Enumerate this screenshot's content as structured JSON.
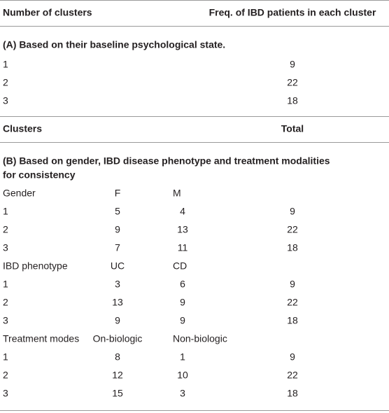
{
  "header": {
    "col1": "Number of clusters",
    "col2": "Freq. of IBD patients in each cluster"
  },
  "section_a": {
    "title": "(A) Based on their baseline psychological state.",
    "rows": [
      [
        1,
        9
      ],
      [
        2,
        22
      ],
      [
        3,
        18
      ]
    ]
  },
  "section_b_header": {
    "col1": "Clusters",
    "col2": "Total"
  },
  "section_b": {
    "title_lines": [
      "(B) Based on gender, IBD disease phenotype and treatment modalities",
      "for consistency"
    ],
    "groups": [
      {
        "labels": [
          "Gender",
          "F",
          "M"
        ],
        "rows": [
          [
            1,
            5,
            4,
            9
          ],
          [
            2,
            9,
            13,
            22
          ],
          [
            3,
            7,
            11,
            18
          ]
        ]
      },
      {
        "labels": [
          "IBD phenotype",
          "UC",
          "CD"
        ],
        "rows": [
          [
            1,
            3,
            6,
            9
          ],
          [
            2,
            13,
            9,
            22
          ],
          [
            3,
            9,
            9,
            18
          ]
        ]
      },
      {
        "labels": [
          "Treatment modes",
          "On-biologic",
          "Non-biologic"
        ],
        "rows": [
          [
            1,
            8,
            1,
            9
          ],
          [
            2,
            12,
            10,
            22
          ],
          [
            3,
            15,
            3,
            18
          ]
        ]
      }
    ]
  }
}
